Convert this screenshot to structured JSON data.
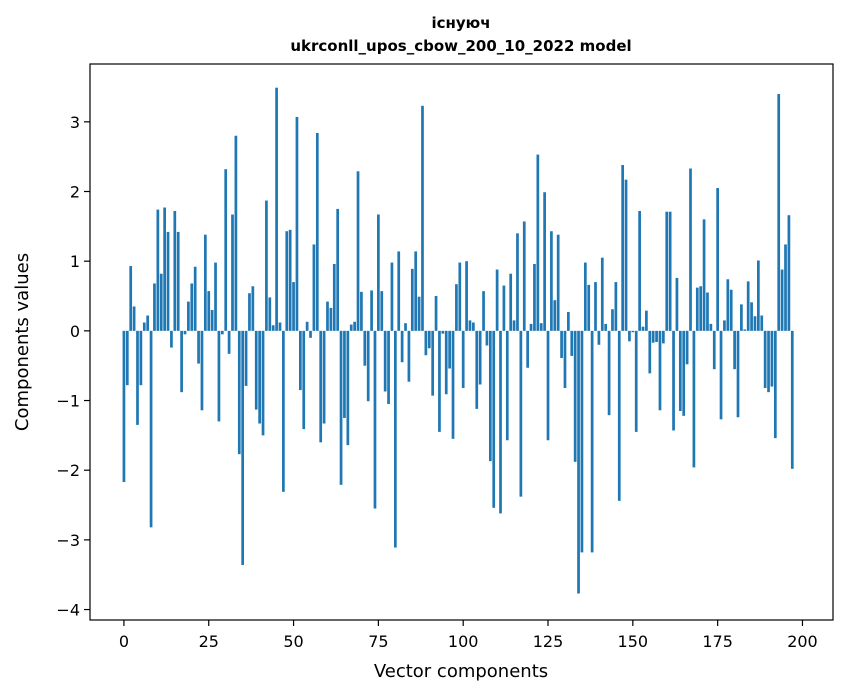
{
  "chart_data": {
    "type": "bar",
    "title_line1": "існуюч",
    "title_line2": "ukrconll_upos_cbow_200_10_2022 model",
    "xlabel": "Vector components",
    "ylabel": "Components values",
    "xlim": [
      -10,
      209
    ],
    "ylim": [
      -4.15,
      3.83
    ],
    "xticks": [
      0,
      25,
      50,
      75,
      100,
      125,
      150,
      175,
      200
    ],
    "yticks": [
      -4,
      -3,
      -2,
      -1,
      0,
      1,
      2,
      3
    ],
    "grid": false,
    "bar_color": "#1f77b4",
    "values": [
      -2.17,
      -0.78,
      0.93,
      0.35,
      -1.35,
      -0.78,
      0.12,
      0.22,
      -2.82,
      0.68,
      1.74,
      0.82,
      1.77,
      1.42,
      -0.24,
      1.72,
      1.42,
      -0.88,
      -0.05,
      0.42,
      0.68,
      0.92,
      -0.47,
      -1.14,
      1.38,
      0.57,
      0.3,
      0.98,
      -1.3,
      -0.05,
      2.32,
      -0.33,
      1.67,
      2.8,
      -1.77,
      -3.36,
      -0.79,
      0.54,
      0.64,
      -1.13,
      -1.33,
      -1.5,
      1.87,
      0.48,
      0.08,
      3.49,
      0.12,
      -2.31,
      1.43,
      1.45,
      0.7,
      3.07,
      -0.85,
      -1.41,
      0.13,
      -0.1,
      1.24,
      2.84,
      -1.6,
      -1.33,
      0.42,
      0.33,
      0.96,
      1.75,
      -2.21,
      -1.25,
      -1.64,
      0.09,
      0.13,
      2.29,
      0.56,
      -0.5,
      -1.01,
      0.58,
      -2.55,
      1.67,
      0.57,
      -0.87,
      -1.05,
      0.98,
      -3.11,
      1.14,
      -0.45,
      0.11,
      -0.73,
      0.89,
      1.14,
      0.49,
      3.23,
      -0.35,
      -0.25,
      -0.93,
      0.5,
      -1.45,
      -0.04,
      -0.91,
      -0.54,
      -1.55,
      0.67,
      0.98,
      -0.82,
      1.0,
      0.15,
      0.12,
      -1.12,
      -0.77,
      0.57,
      -0.21,
      -1.87,
      -2.54,
      0.88,
      -2.62,
      0.65,
      -1.57,
      0.82,
      0.15,
      1.4,
      -2.38,
      1.57,
      -0.53,
      0.1,
      0.96,
      2.53,
      0.11,
      1.99,
      -1.57,
      1.43,
      0.44,
      1.38,
      -0.39,
      -0.82,
      0.27,
      -0.36,
      -1.88,
      -3.77,
      -3.18,
      0.98,
      0.66,
      -3.18,
      0.7,
      -0.2,
      1.05,
      0.1,
      -1.21,
      0.31,
      0.7,
      -2.44,
      2.38,
      2.17,
      -0.15,
      -0.02,
      -1.45,
      1.72,
      0.06,
      0.29,
      -0.61,
      -0.17,
      -0.16,
      -1.14,
      -0.18,
      1.71,
      1.71,
      -1.43,
      0.76,
      -1.15,
      -1.22,
      -0.48,
      2.33,
      -1.96,
      0.62,
      0.64,
      1.6,
      0.55,
      0.1,
      -0.55,
      2.05,
      -1.27,
      0.15,
      0.74,
      0.59,
      -0.55,
      -1.24,
      0.38,
      0.02,
      0.71,
      0.41,
      0.21,
      1.01,
      0.22,
      -0.82,
      -0.88,
      -0.8,
      -1.54,
      3.4,
      0.88,
      1.24,
      1.66,
      -1.98
    ]
  }
}
